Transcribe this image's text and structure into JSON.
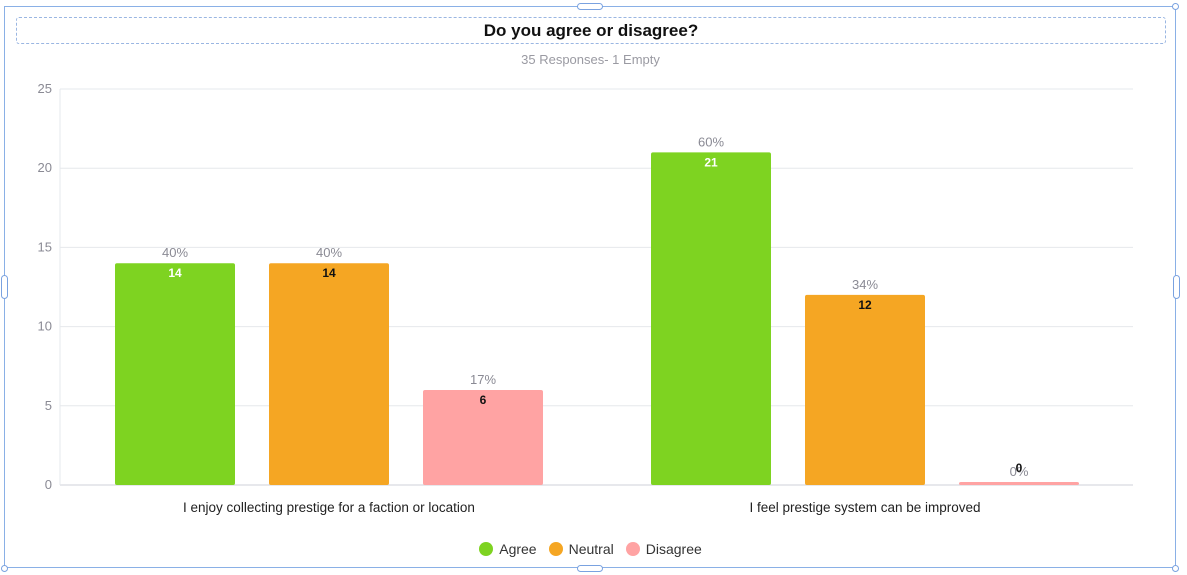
{
  "title": "Do you agree or disagree?",
  "subtitle": "35 Responses- 1 Empty",
  "chart_data": {
    "type": "bar",
    "categories": [
      "I enjoy collecting prestige for a faction or location",
      "I feel prestige system can be improved"
    ],
    "series": [
      {
        "name": "Agree",
        "color": "#7ed321",
        "values": [
          14,
          21
        ],
        "percents": [
          "40%",
          "60%"
        ],
        "value_labels": [
          "14",
          "21"
        ],
        "label_color": "#ffffff"
      },
      {
        "name": "Neutral",
        "color": "#f5a623",
        "values": [
          14,
          12
        ],
        "percents": [
          "40%",
          "34%"
        ],
        "value_labels": [
          "14",
          "12"
        ],
        "label_color": "#111111"
      },
      {
        "name": "Disagree",
        "color": "#ffa3a3",
        "values": [
          6,
          0
        ],
        "percents": [
          "17%",
          "0%"
        ],
        "value_labels": [
          "6",
          "0"
        ],
        "label_color": "#111111"
      }
    ],
    "ylim": [
      0,
      25
    ],
    "yticks": [
      "0",
      "5",
      "10",
      "15",
      "20",
      "25"
    ],
    "grid": true,
    "legend": "bottom-center"
  }
}
